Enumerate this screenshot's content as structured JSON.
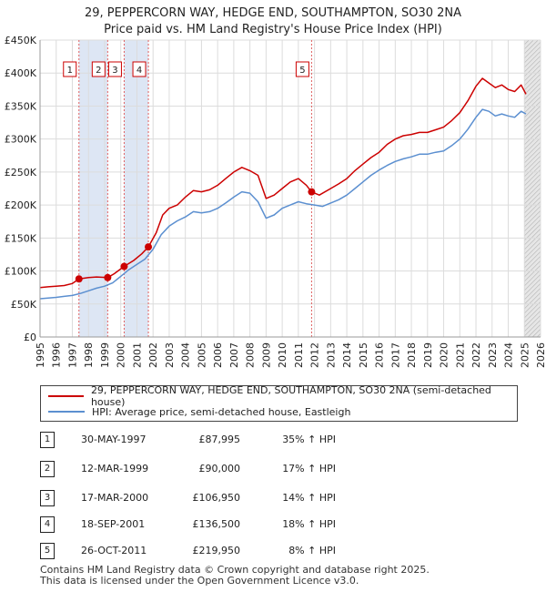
{
  "title_line1": "29, PEPPERCORN WAY, HEDGE END, SOUTHAMPTON, SO30 2NA",
  "title_line2": "Price paid vs. HM Land Registry's House Price Index (HPI)",
  "colors": {
    "property": "#cc0000",
    "hpi": "#5b8fd0",
    "shade": "#dde6f4",
    "grid": "#dcdcdc"
  },
  "chart_data": {
    "type": "line",
    "title": "Price paid vs. HM Land Registry's House Price Index (HPI)",
    "xlim": [
      1995,
      2026
    ],
    "ylim": [
      0,
      450000
    ],
    "x_ticks": [
      "1995",
      "1996",
      "1997",
      "1998",
      "1999",
      "2000",
      "2001",
      "2002",
      "2003",
      "2004",
      "2005",
      "2006",
      "2007",
      "2008",
      "2009",
      "2010",
      "2011",
      "2012",
      "2013",
      "2014",
      "2015",
      "2016",
      "2017",
      "2018",
      "2019",
      "2020",
      "2021",
      "2022",
      "2023",
      "2024",
      "2025",
      "2026"
    ],
    "y_ticks": [
      {
        "value": 0,
        "label": "£0"
      },
      {
        "value": 50000,
        "label": "£50K"
      },
      {
        "value": 100000,
        "label": "£100K"
      },
      {
        "value": 150000,
        "label": "£150K"
      },
      {
        "value": 200000,
        "label": "£200K"
      },
      {
        "value": 250000,
        "label": "£250K"
      },
      {
        "value": 300000,
        "label": "£300K"
      },
      {
        "value": 350000,
        "label": "£350K"
      },
      {
        "value": 400000,
        "label": "£400K"
      },
      {
        "value": 450000,
        "label": "£450K"
      }
    ],
    "series": [
      {
        "name": "29, PEPPERCORN WAY, HEDGE END, SOUTHAMPTON, SO30 2NA (semi-detached house)",
        "points": [
          [
            1995,
            75000
          ],
          [
            1995.5,
            76000
          ],
          [
            1996,
            77000
          ],
          [
            1996.5,
            78000
          ],
          [
            1997,
            81000
          ],
          [
            1997.41,
            87995
          ],
          [
            1998,
            90000
          ],
          [
            1998.5,
            91000
          ],
          [
            1999.19,
            90000
          ],
          [
            1999.6,
            96000
          ],
          [
            2000.21,
            106950
          ],
          [
            2000.8,
            116000
          ],
          [
            2001.3,
            126000
          ],
          [
            2001.71,
            136500
          ],
          [
            2002.2,
            158000
          ],
          [
            2002.6,
            185000
          ],
          [
            2003,
            195000
          ],
          [
            2003.5,
            200000
          ],
          [
            2004,
            212000
          ],
          [
            2004.5,
            222000
          ],
          [
            2005,
            220000
          ],
          [
            2005.5,
            223000
          ],
          [
            2006,
            230000
          ],
          [
            2006.5,
            240000
          ],
          [
            2007,
            250000
          ],
          [
            2007.5,
            257000
          ],
          [
            2008,
            252000
          ],
          [
            2008.5,
            245000
          ],
          [
            2009,
            210000
          ],
          [
            2009.5,
            215000
          ],
          [
            2010,
            225000
          ],
          [
            2010.5,
            235000
          ],
          [
            2011,
            240000
          ],
          [
            2011.5,
            230000
          ],
          [
            2011.82,
            219950
          ],
          [
            2012.3,
            215000
          ],
          [
            2013,
            225000
          ],
          [
            2013.5,
            232000
          ],
          [
            2014,
            240000
          ],
          [
            2014.5,
            252000
          ],
          [
            2015,
            262000
          ],
          [
            2015.5,
            272000
          ],
          [
            2016,
            280000
          ],
          [
            2016.5,
            292000
          ],
          [
            2017,
            300000
          ],
          [
            2017.5,
            305000
          ],
          [
            2018,
            307000
          ],
          [
            2018.5,
            310000
          ],
          [
            2019,
            310000
          ],
          [
            2019.5,
            314000
          ],
          [
            2020,
            318000
          ],
          [
            2020.5,
            328000
          ],
          [
            2021,
            340000
          ],
          [
            2021.5,
            358000
          ],
          [
            2022,
            380000
          ],
          [
            2022.4,
            392000
          ],
          [
            2022.8,
            385000
          ],
          [
            2023.2,
            378000
          ],
          [
            2023.6,
            382000
          ],
          [
            2024,
            375000
          ],
          [
            2024.4,
            372000
          ],
          [
            2024.8,
            382000
          ],
          [
            2025.1,
            368000
          ]
        ]
      },
      {
        "name": "HPI: Average price, semi-detached house, Eastleigh",
        "points": [
          [
            1995,
            58000
          ],
          [
            1995.5,
            59000
          ],
          [
            1996,
            60000
          ],
          [
            1996.5,
            61500
          ],
          [
            1997,
            63000
          ],
          [
            1997.5,
            66000
          ],
          [
            1998,
            70000
          ],
          [
            1998.5,
            74000
          ],
          [
            1999,
            77000
          ],
          [
            1999.5,
            82000
          ],
          [
            2000,
            92000
          ],
          [
            2000.5,
            102000
          ],
          [
            2001,
            110000
          ],
          [
            2001.5,
            118000
          ],
          [
            2002,
            133000
          ],
          [
            2002.5,
            155000
          ],
          [
            2003,
            168000
          ],
          [
            2003.5,
            176000
          ],
          [
            2004,
            182000
          ],
          [
            2004.5,
            190000
          ],
          [
            2005,
            188000
          ],
          [
            2005.5,
            190000
          ],
          [
            2006,
            195000
          ],
          [
            2006.5,
            203000
          ],
          [
            2007,
            212000
          ],
          [
            2007.5,
            220000
          ],
          [
            2008,
            218000
          ],
          [
            2008.5,
            205000
          ],
          [
            2009,
            180000
          ],
          [
            2009.5,
            185000
          ],
          [
            2010,
            195000
          ],
          [
            2010.5,
            200000
          ],
          [
            2011,
            205000
          ],
          [
            2011.5,
            202000
          ],
          [
            2012,
            200000
          ],
          [
            2012.5,
            198000
          ],
          [
            2013,
            203000
          ],
          [
            2013.5,
            208000
          ],
          [
            2014,
            215000
          ],
          [
            2014.5,
            225000
          ],
          [
            2015,
            235000
          ],
          [
            2015.5,
            245000
          ],
          [
            2016,
            253000
          ],
          [
            2016.5,
            260000
          ],
          [
            2017,
            266000
          ],
          [
            2017.5,
            270000
          ],
          [
            2018,
            273000
          ],
          [
            2018.5,
            277000
          ],
          [
            2019,
            277000
          ],
          [
            2019.5,
            280000
          ],
          [
            2020,
            282000
          ],
          [
            2020.5,
            290000
          ],
          [
            2021,
            300000
          ],
          [
            2021.5,
            315000
          ],
          [
            2022,
            333000
          ],
          [
            2022.4,
            345000
          ],
          [
            2022.8,
            342000
          ],
          [
            2023.2,
            335000
          ],
          [
            2023.6,
            338000
          ],
          [
            2024,
            335000
          ],
          [
            2024.4,
            333000
          ],
          [
            2024.8,
            342000
          ],
          [
            2025.1,
            338000
          ]
        ]
      }
    ],
    "sales": [
      {
        "n": "1",
        "x": 1997.41,
        "y": 87995
      },
      {
        "n": "2",
        "x": 1999.19,
        "y": 90000
      },
      {
        "n": "3",
        "x": 2000.21,
        "y": 106950
      },
      {
        "n": "4",
        "x": 2001.71,
        "y": 136500
      },
      {
        "n": "5",
        "x": 2011.82,
        "y": 219950
      }
    ],
    "shaded_ranges": [
      [
        1997.41,
        1999.19
      ],
      [
        2000.21,
        2001.71
      ],
      [
        2025.0,
        2026
      ]
    ]
  },
  "legend": {
    "property_label": "29, PEPPERCORN WAY, HEDGE END, SOUTHAMPTON, SO30 2NA (semi-detached house)",
    "hpi_label": "HPI: Average price, semi-detached house, Eastleigh"
  },
  "transactions": [
    {
      "num": "1",
      "date": "30-MAY-1997",
      "price": "£87,995",
      "hpi": "35% ↑ HPI"
    },
    {
      "num": "2",
      "date": "12-MAR-1999",
      "price": "£90,000",
      "hpi": "17% ↑ HPI"
    },
    {
      "num": "3",
      "date": "17-MAR-2000",
      "price": "£106,950",
      "hpi": "14% ↑ HPI"
    },
    {
      "num": "4",
      "date": "18-SEP-2001",
      "price": "£136,500",
      "hpi": "18% ↑ HPI"
    },
    {
      "num": "5",
      "date": "26-OCT-2011",
      "price": "£219,950",
      "hpi": "8% ↑ HPI"
    }
  ],
  "footer": {
    "line1": "Contains HM Land Registry data © Crown copyright and database right 2025.",
    "line2": "This data is licensed under the Open Government Licence v3.0."
  }
}
